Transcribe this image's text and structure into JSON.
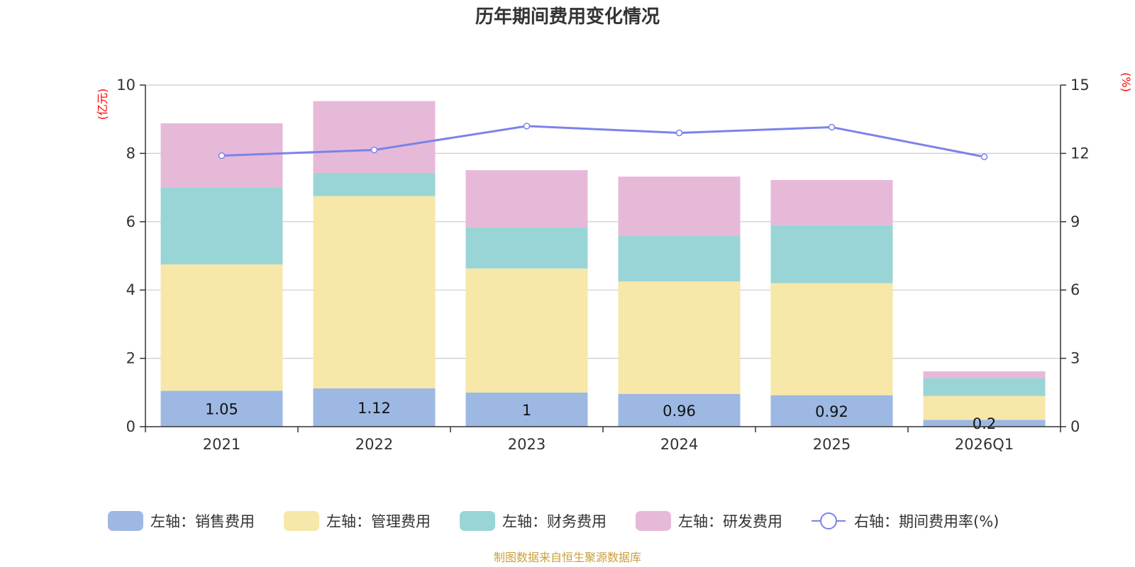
{
  "chart_data": {
    "type": "bar",
    "stacked": true,
    "title": "历年期间费用变化情况",
    "categories": [
      "2021",
      "2022",
      "2023",
      "2024",
      "2025",
      "2026Q1"
    ],
    "left_axis": {
      "label": "(亿元)",
      "range": [
        0,
        10
      ],
      "ticks": [
        "0",
        "2",
        "4",
        "6",
        "8",
        "10"
      ]
    },
    "right_axis": {
      "label": "(%)",
      "range": [
        0,
        15
      ],
      "ticks": [
        "0",
        "3",
        "6",
        "9",
        "12",
        "15"
      ]
    },
    "series": [
      {
        "name": "左轴：销售费用",
        "axis": "left",
        "color": "#9db8e3",
        "values": [
          1.05,
          1.12,
          1.0,
          0.96,
          0.92,
          0.2
        ]
      },
      {
        "name": "左轴：管理费用",
        "axis": "left",
        "color": "#f7e7a8",
        "values": [
          3.7,
          5.63,
          3.63,
          3.29,
          3.28,
          0.7
        ]
      },
      {
        "name": "左轴：财务费用",
        "axis": "left",
        "color": "#99d5d6",
        "values": [
          2.25,
          0.68,
          1.2,
          1.33,
          1.7,
          0.52
        ]
      },
      {
        "name": "左轴：研发费用",
        "axis": "left",
        "color": "#e7b9d9",
        "values": [
          1.88,
          2.1,
          1.68,
          1.74,
          1.32,
          0.2
        ]
      },
      {
        "name": "右轴：期间费用率(%)",
        "axis": "right",
        "type": "line",
        "color": "#7b83ea",
        "values": [
          11.9,
          12.15,
          13.2,
          12.9,
          13.15,
          11.85
        ]
      }
    ],
    "data_labels": [
      "1.05",
      "1.12",
      "1",
      "0.96",
      "0.92",
      "0.2"
    ],
    "grid": true,
    "legend_position": "bottom"
  },
  "source": {
    "text": "制图数据来自恒生聚源数据库",
    "color": "#c8a03c"
  }
}
